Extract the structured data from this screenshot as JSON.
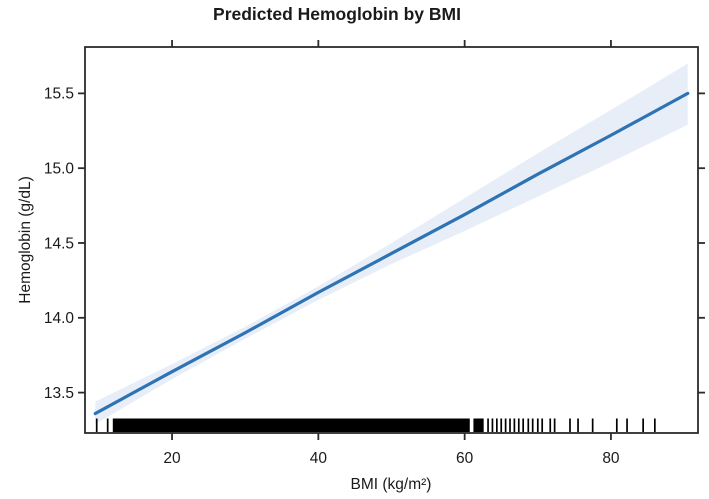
{
  "chart_data": {
    "type": "line",
    "title": "Predicted Hemoglobin by BMI",
    "xlabel": "BMI (kg/m²)",
    "ylabel": "Hemoglobin (g/dL)",
    "xlim": [
      8.1,
      91.9
    ],
    "ylim": [
      13.23,
      15.81
    ],
    "x_ticks": [
      20,
      40,
      60,
      80
    ],
    "x_tick_labels": [
      "20",
      "40",
      "60",
      "80"
    ],
    "y_ticks": [
      13.5,
      14.0,
      14.5,
      15.0,
      15.5
    ],
    "y_tick_labels": [
      "13.5",
      "14.0",
      "14.5",
      "15.0",
      "15.5"
    ],
    "grid": false,
    "legend": "none",
    "series": [
      {
        "name": "predicted-hemoglobin-fit",
        "x": [
          9.5,
          20,
          30,
          40,
          50,
          60,
          70,
          80,
          90.5
        ],
        "y": [
          13.36,
          13.64,
          13.9,
          14.17,
          14.43,
          14.69,
          14.96,
          15.22,
          15.5
        ]
      }
    ],
    "confidence_band": {
      "x": [
        9.5,
        20,
        30,
        40,
        50,
        60,
        70,
        80,
        90.5
      ],
      "upper": [
        13.44,
        13.69,
        13.94,
        14.21,
        14.5,
        14.8,
        15.1,
        15.39,
        15.7
      ],
      "lower": [
        13.29,
        13.59,
        13.86,
        14.12,
        14.36,
        14.58,
        14.81,
        15.04,
        15.29
      ]
    },
    "rug": {
      "dense_ranges": [
        [
          11.9,
          60.7
        ],
        [
          61.2,
          62.6
        ]
      ],
      "ticks": [
        9.7,
        11.2,
        63.2,
        63.8,
        64.4,
        65.0,
        65.6,
        66.2,
        66.8,
        67.4,
        68.0,
        68.7,
        69.3,
        70.0,
        70.6,
        71.7,
        72.3,
        74.4,
        75.5,
        77.5,
        80.8,
        82.2,
        84.4,
        86.0
      ]
    },
    "colors": {
      "line": "#2e73b3",
      "band": "#e8eef7",
      "axis": "#2b2b2b",
      "text": "#1a1a1a",
      "rug": "#000000",
      "background": "#ffffff"
    }
  }
}
